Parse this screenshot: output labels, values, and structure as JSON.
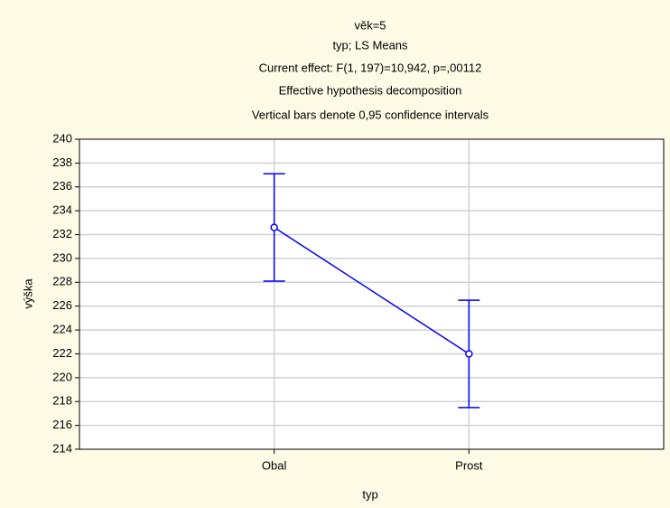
{
  "chart_data": {
    "type": "line-errorbar",
    "title": "věk=5",
    "subtitle": [
      "typ; LS Means",
      "Current effect: F(1, 197)=10,942, p=,00112",
      "Effective hypothesis decomposition",
      "Vertical bars denote 0,95 confidence intervals"
    ],
    "xlabel": "typ",
    "ylabel": "výška",
    "categories": [
      "Obal",
      "Prost"
    ],
    "values": [
      232.6,
      222.0
    ],
    "errors": [
      4.5,
      4.5
    ],
    "color": "#0000ff",
    "ylim": [
      214,
      240
    ],
    "yticks": [
      214,
      216,
      218,
      220,
      222,
      224,
      226,
      228,
      230,
      232,
      234,
      236,
      238,
      240
    ],
    "grid": true
  }
}
